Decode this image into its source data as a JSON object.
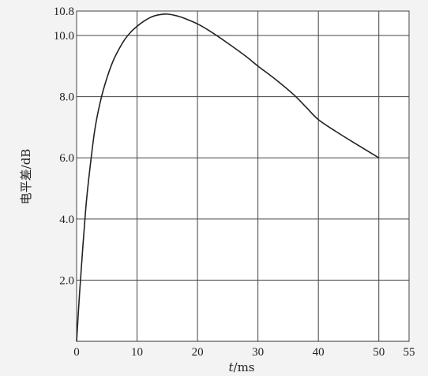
{
  "chart_data": {
    "type": "line",
    "xlabel": {
      "var": "t",
      "unit": "/ms"
    },
    "ylabel": "电平差/dB",
    "xlim": [
      0,
      55
    ],
    "ylim": [
      0,
      10.8
    ],
    "x_grid": [
      0,
      10,
      20,
      30,
      40,
      50,
      55
    ],
    "y_grid": [
      2.0,
      4.0,
      6.0,
      8.0,
      10.0,
      10.8
    ],
    "x_ticks": [
      {
        "value": 0,
        "label": "0"
      },
      {
        "value": 10,
        "label": "10"
      },
      {
        "value": 20,
        "label": "20"
      },
      {
        "value": 30,
        "label": "30"
      },
      {
        "value": 40,
        "label": "40"
      },
      {
        "value": 50,
        "label": "50"
      },
      {
        "value": 55,
        "label": "55"
      }
    ],
    "y_ticks": [
      {
        "value": 2.0,
        "label": "2.0"
      },
      {
        "value": 4.0,
        "label": "4.0"
      },
      {
        "value": 6.0,
        "label": "6.0"
      },
      {
        "value": 8.0,
        "label": "8.0"
      },
      {
        "value": 10.0,
        "label": "10.0"
      },
      {
        "value": 10.8,
        "label": "10.8"
      }
    ],
    "grid": true,
    "series": [
      {
        "x": [
          0,
          0.5,
          1,
          1.5,
          2,
          3,
          4,
          5,
          6,
          7,
          8,
          9,
          10,
          11,
          12,
          13,
          14,
          15,
          16,
          17,
          18,
          20,
          22,
          25,
          28,
          30,
          33,
          36,
          38,
          40,
          43,
          46,
          50
        ],
        "y": [
          0,
          1.6,
          3.0,
          4.3,
          5.3,
          6.9,
          7.9,
          8.6,
          9.15,
          9.55,
          9.88,
          10.12,
          10.3,
          10.45,
          10.57,
          10.65,
          10.69,
          10.7,
          10.67,
          10.62,
          10.55,
          10.38,
          10.15,
          9.75,
          9.32,
          9.0,
          8.55,
          8.05,
          7.65,
          7.25,
          6.85,
          6.48,
          6.0
        ]
      }
    ]
  }
}
